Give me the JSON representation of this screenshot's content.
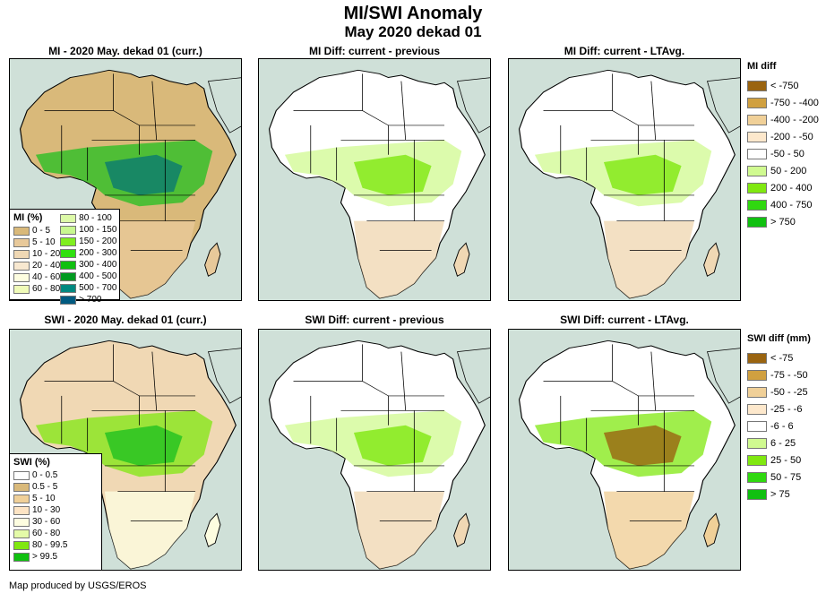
{
  "title": "MI/SWI Anomaly",
  "subtitle": "May 2020 dekad 01",
  "panels": [
    {
      "id": "mi-curr",
      "title": "MI - 2020 May. dekad 01 (curr.)",
      "scheme": "mi"
    },
    {
      "id": "mi-prev",
      "title": "MI Diff: current - previous",
      "scheme": "diff"
    },
    {
      "id": "mi-lta",
      "title": "MI Diff: current - LTAvg.",
      "scheme": "diff"
    },
    {
      "id": "swi-curr",
      "title": "SWI - 2020 May. dekad 01 (curr.)",
      "scheme": "swi"
    },
    {
      "id": "swi-prev",
      "title": "SWI Diff: current - previous",
      "scheme": "diff"
    },
    {
      "id": "swi-lta",
      "title": "SWI Diff: current - LTAvg.",
      "scheme": "diff-strong"
    }
  ],
  "legend_mi": {
    "title": "MI (%)",
    "items": [
      {
        "label": "0 - 5",
        "color": "#d9b97a"
      },
      {
        "label": "5 - 10",
        "color": "#e8c99a"
      },
      {
        "label": "10 - 20",
        "color": "#f0d8b4"
      },
      {
        "label": "20 - 40",
        "color": "#f8e8d0"
      },
      {
        "label": "40 - 60",
        "color": "#fdfde0"
      },
      {
        "label": "60 - 80",
        "color": "#f0fbb8"
      },
      {
        "label": "80 - 100",
        "color": "#ddfaa8"
      },
      {
        "label": "100 - 150",
        "color": "#c8f890"
      },
      {
        "label": "150 - 200",
        "color": "#80ee20"
      },
      {
        "label": "200 - 300",
        "color": "#30e010"
      },
      {
        "label": "300 - 400",
        "color": "#10c010"
      },
      {
        "label": "400 - 500",
        "color": "#009a20"
      },
      {
        "label": "500 - 700",
        "color": "#008880"
      },
      {
        "label": "> 700",
        "color": "#005a80"
      }
    ]
  },
  "legend_mi_diff": {
    "title": "MI diff",
    "items": [
      {
        "label": "< -750",
        "color": "#9a6410"
      },
      {
        "label": "-750 - -400",
        "color": "#d0a040"
      },
      {
        "label": "-400 - -200",
        "color": "#f0d098"
      },
      {
        "label": "-200 - -50",
        "color": "#fde8cc"
      },
      {
        "label": "-50 - 50",
        "color": "#ffffff"
      },
      {
        "label": "50 - 200",
        "color": "#d0fa90"
      },
      {
        "label": "200 - 400",
        "color": "#80e810"
      },
      {
        "label": "400 - 750",
        "color": "#30d810"
      },
      {
        "label": "> 750",
        "color": "#10c010"
      }
    ]
  },
  "legend_swi": {
    "title": "SWI (%)",
    "items": [
      {
        "label": "0 - 0.5",
        "color": "#ffffff"
      },
      {
        "label": "0.5 - 5",
        "color": "#d9b97a"
      },
      {
        "label": "5 - 10",
        "color": "#f0d098"
      },
      {
        "label": "10 - 30",
        "color": "#fde4c4"
      },
      {
        "label": "30 - 60",
        "color": "#fdfde0"
      },
      {
        "label": "60 - 80",
        "color": "#e4fba8"
      },
      {
        "label": "80 - 99.5",
        "color": "#80e810"
      },
      {
        "label": "> 99.5",
        "color": "#10c010"
      }
    ]
  },
  "legend_swi_diff": {
    "title": "SWI diff (mm)",
    "items": [
      {
        "label": "< -75",
        "color": "#9a6410"
      },
      {
        "label": "-75 - -50",
        "color": "#d0a040"
      },
      {
        "label": "-50 - -25",
        "color": "#f0d098"
      },
      {
        "label": "-25 - -6",
        "color": "#fde8cc"
      },
      {
        "label": "-6 - 6",
        "color": "#ffffff"
      },
      {
        "label": "6 - 25",
        "color": "#d0fa90"
      },
      {
        "label": "25 - 50",
        "color": "#80e810"
      },
      {
        "label": "50 - 75",
        "color": "#30d810"
      },
      {
        "label": "> 75",
        "color": "#10c010"
      }
    ]
  },
  "colors": {
    "ocean": "#cfe0d8",
    "border": "#000000"
  },
  "footer": "Map produced by USGS/EROS"
}
